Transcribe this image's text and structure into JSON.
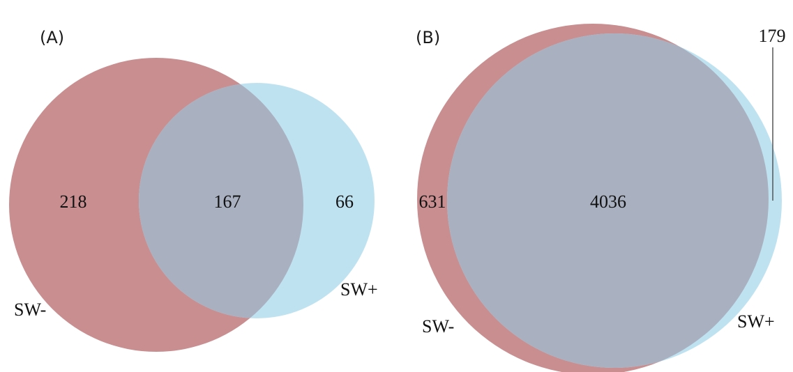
{
  "colors": {
    "sw_minus": "#c98e90",
    "sw_plus": "#bfe2f1",
    "overlap": "#a9b1c1",
    "leader": "#555555"
  },
  "panels": [
    {
      "label": "(A)",
      "sets": [
        {
          "name": "SW-",
          "only_count": "218"
        },
        {
          "name": "SW+",
          "only_count": "66"
        }
      ],
      "intersection_count": "167"
    },
    {
      "label": "(B)",
      "sets": [
        {
          "name": "SW-",
          "only_count": "631"
        },
        {
          "name": "SW+",
          "only_count": "179"
        }
      ],
      "intersection_count": "4036"
    }
  ]
}
